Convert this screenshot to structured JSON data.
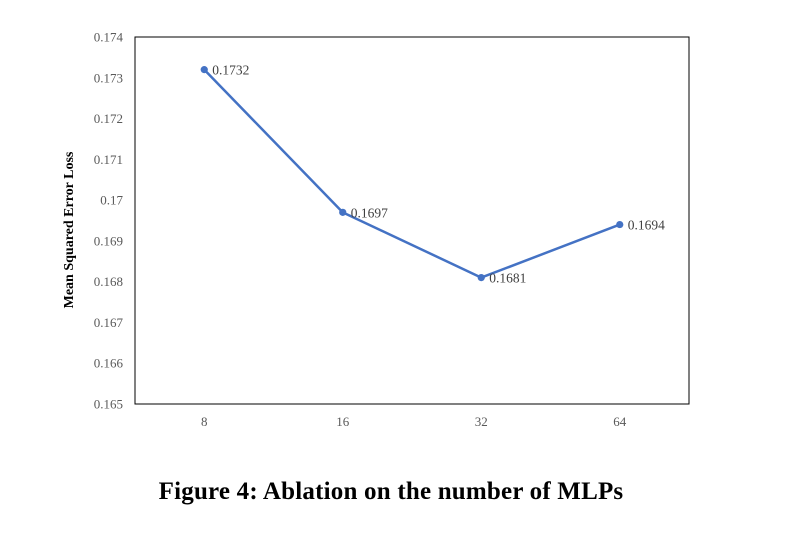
{
  "chart_data": {
    "type": "line",
    "categories": [
      "8",
      "16",
      "32",
      "64"
    ],
    "series": [
      {
        "values": [
          0.1732,
          0.1697,
          0.1681,
          0.1694
        ]
      }
    ],
    "data_labels": [
      "0.1732",
      "0.1697",
      "0.1681",
      "0.1694"
    ],
    "ylabel": "Mean Squared Error Loss",
    "xlabel": "",
    "ylim": [
      0.165,
      0.174
    ],
    "yticks": [
      0.165,
      0.166,
      0.167,
      0.168,
      0.169,
      0.17,
      0.171,
      0.172,
      0.173,
      0.174
    ],
    "ytick_labels": [
      "0.165",
      "0.166",
      "0.167",
      "0.168",
      "0.169",
      "0.17",
      "0.171",
      "0.172",
      "0.173",
      "0.174"
    ],
    "grid": false,
    "legend": "none",
    "colors": {
      "line": "#4472C4",
      "frame": "#000000",
      "ticks": "#595959"
    }
  },
  "caption": "Figure 4: Ablation on the number of MLPs"
}
